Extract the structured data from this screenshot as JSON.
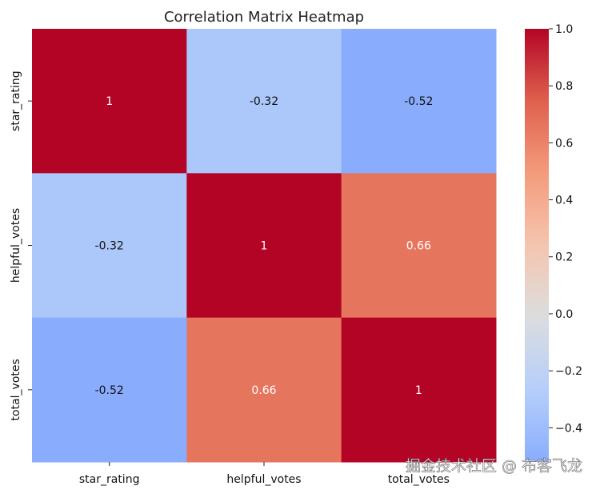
{
  "chart_data": {
    "type": "heatmap",
    "title": "Correlation Matrix Heatmap",
    "xlabel": "",
    "ylabel": "",
    "x_categories": [
      "star_rating",
      "helpful_votes",
      "total_votes"
    ],
    "y_categories": [
      "star_rating",
      "helpful_votes",
      "total_votes"
    ],
    "values": [
      [
        1,
        -0.32,
        -0.52
      ],
      [
        -0.32,
        1,
        0.66
      ],
      [
        -0.52,
        0.66,
        1
      ]
    ],
    "annotations": [
      [
        "1",
        "-0.32",
        "-0.52"
      ],
      [
        "-0.32",
        "1",
        "0.66"
      ],
      [
        "-0.52",
        "0.66",
        "1"
      ]
    ],
    "colormap": "coolwarm",
    "colorbar": {
      "vmin": -0.52,
      "vmax": 1.0,
      "ticks": [
        1.0,
        0.8,
        0.6,
        0.4,
        0.2,
        0.0,
        -0.2,
        -0.4
      ],
      "tick_labels": [
        "1.0",
        "0.8",
        "0.6",
        "0.4",
        "0.2",
        "0.0",
        "−0.2",
        "−0.4"
      ]
    }
  },
  "watermark": "掘金技术社区 @ 布客飞龙"
}
